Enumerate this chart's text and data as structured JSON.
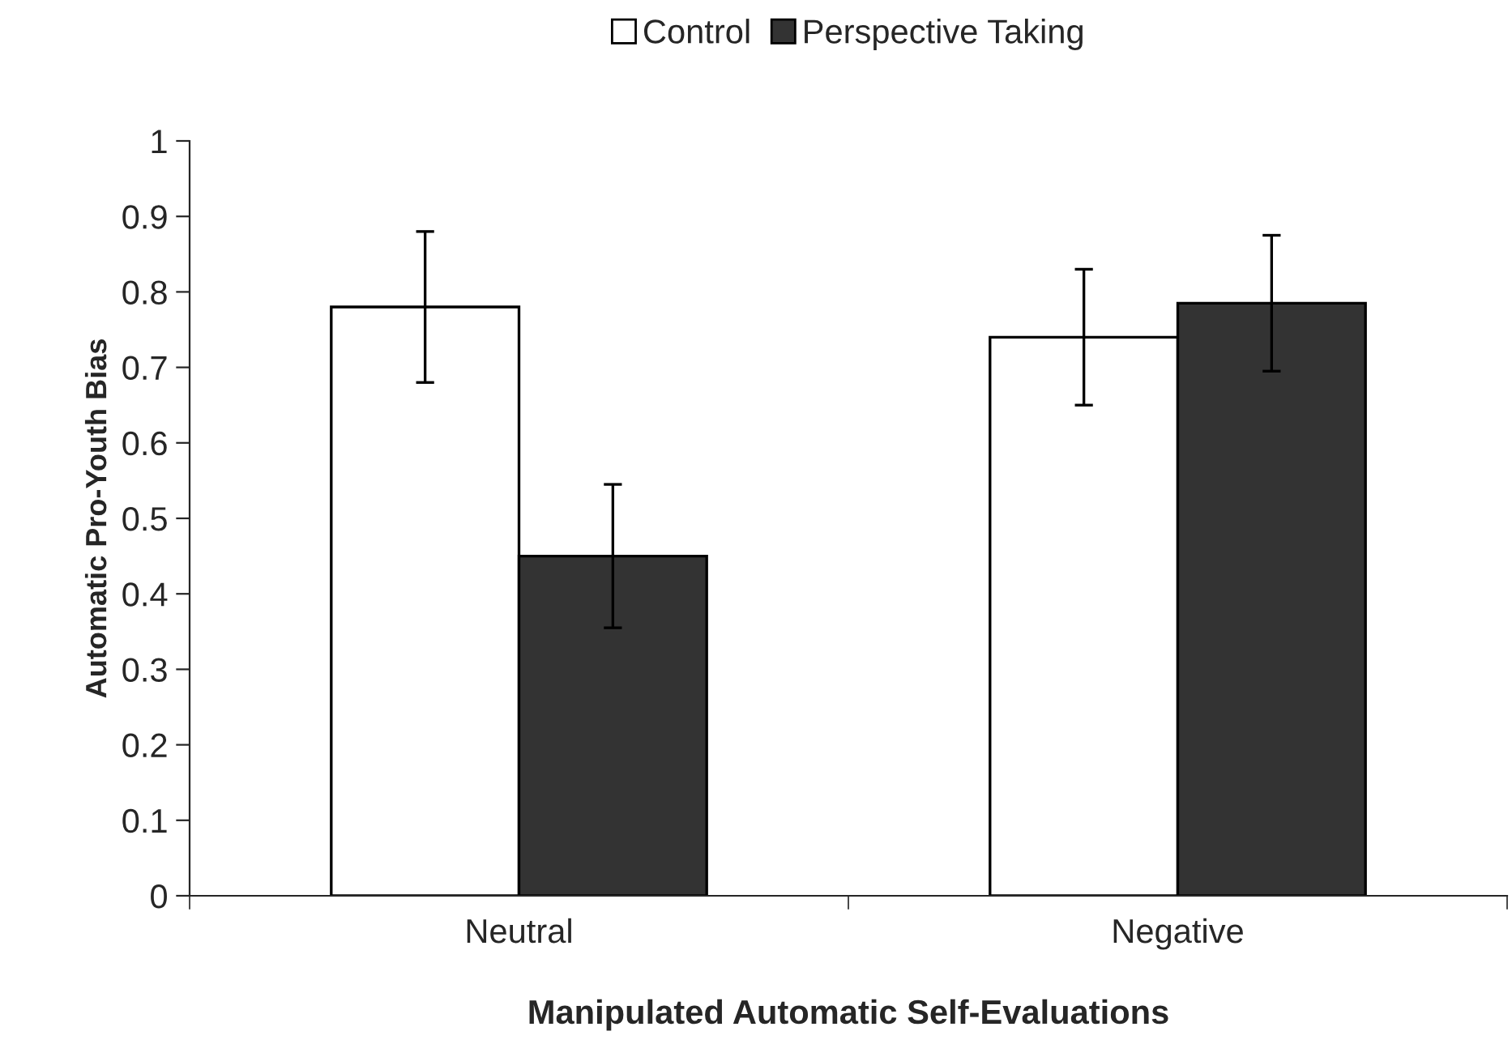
{
  "chart_data": {
    "type": "bar",
    "xlabel": "Manipulated Automatic Self-Evaluations",
    "ylabel": "Automatic Pro-Youth Bias",
    "categories": [
      "Neutral",
      "Negative"
    ],
    "series": [
      {
        "name": "Control",
        "color": "#ffffff",
        "values": [
          0.78,
          0.74
        ],
        "errors": [
          0.1,
          0.09
        ]
      },
      {
        "name": "Perspective Taking",
        "color": "#333333",
        "values": [
          0.45,
          0.785
        ],
        "errors": [
          0.095,
          0.09
        ]
      }
    ],
    "ylim": [
      0,
      1
    ],
    "yticks": [
      0,
      0.1,
      0.2,
      0.3,
      0.4,
      0.5,
      0.6,
      0.7,
      0.8,
      0.9,
      1
    ],
    "grid": false,
    "legend": "top"
  }
}
